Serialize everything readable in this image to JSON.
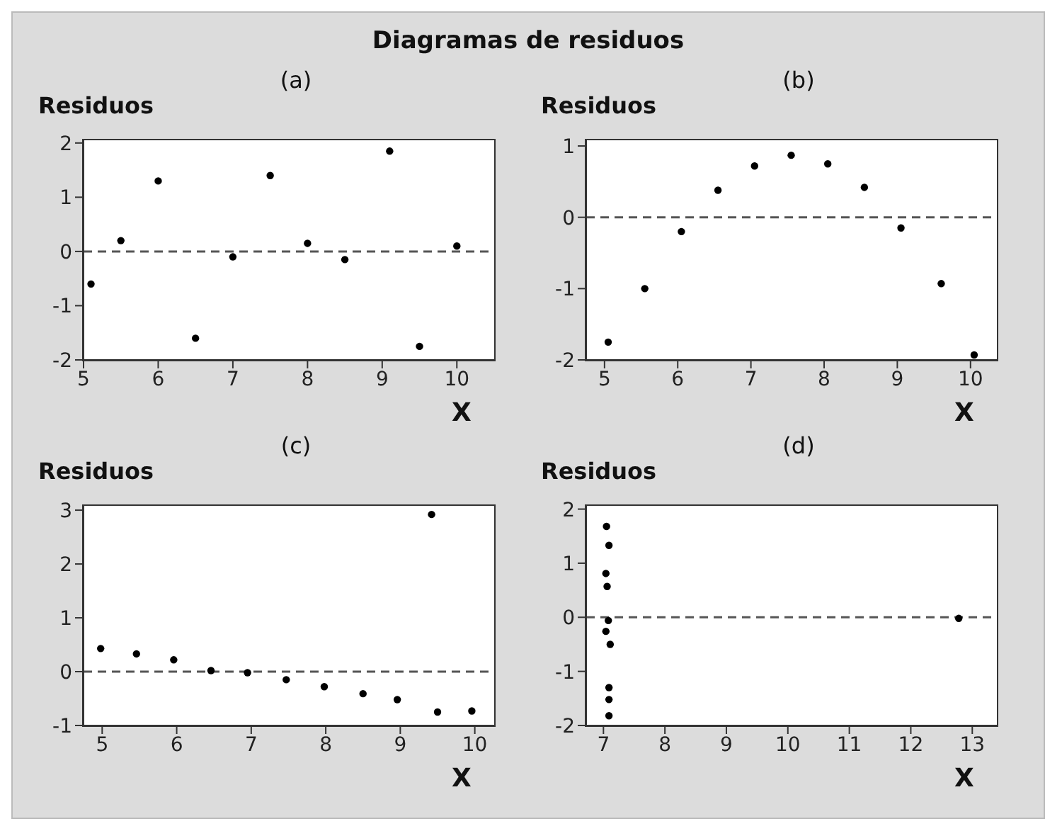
{
  "chart_data": [
    {
      "type": "scatter",
      "title": "Diagramas de residuos",
      "subtitle": "(a)",
      "ylabel": "Residuos",
      "xlabel": "X",
      "marker": "circle",
      "xlim": [
        5,
        10.5
      ],
      "xticks": [
        5,
        6,
        7,
        8,
        9,
        10
      ],
      "ylim": [
        -2,
        2.05
      ],
      "yticks": [
        -2,
        -1,
        0,
        1,
        2
      ],
      "ref_lines": [
        {
          "axis": "y",
          "value": 0,
          "color": "#555555",
          "line_style": "dashed"
        }
      ],
      "series": [
        {
          "color": "#000000",
          "x": [
            5.1,
            5.5,
            6,
            6.5,
            7,
            7.5,
            8,
            8.5,
            9.1,
            9.5,
            10
          ],
          "values": [
            -0.6,
            0.2,
            1.3,
            -1.6,
            -0.1,
            1.4,
            0.15,
            -0.15,
            1.85,
            -1.75,
            0.1
          ]
        }
      ]
    },
    {
      "type": "scatter",
      "subtitle": "(b)",
      "ylabel": "Residuos",
      "xlabel": "X",
      "marker": "circle",
      "xlim": [
        4.75,
        10.36
      ],
      "xticks": [
        5,
        6,
        7,
        8,
        9,
        10
      ],
      "ylim": [
        -2,
        1.08
      ],
      "yticks": [
        -2,
        -1,
        0,
        1
      ],
      "ref_lines": [
        {
          "axis": "y",
          "value": 0,
          "color": "#555555",
          "line_style": "dashed"
        }
      ],
      "series": [
        {
          "color": "#000000",
          "x": [
            5.05,
            5.55,
            6.05,
            6.55,
            7.05,
            7.55,
            8.05,
            8.55,
            9.05,
            9.6,
            10.05
          ],
          "values": [
            -1.75,
            -1.0,
            -0.2,
            0.38,
            0.72,
            0.87,
            0.75,
            0.42,
            -0.15,
            -0.93,
            -1.93
          ]
        }
      ]
    },
    {
      "type": "scatter",
      "subtitle": "(c)",
      "ylabel": "Residuos",
      "xlabel": "X",
      "marker": "circle",
      "xlim": [
        4.75,
        10.26
      ],
      "xticks": [
        5,
        6,
        7,
        8,
        9,
        10
      ],
      "ylim": [
        -1,
        3.08
      ],
      "yticks": [
        -1,
        0,
        1,
        2,
        3
      ],
      "ref_lines": [
        {
          "axis": "y",
          "value": 0,
          "color": "#555555",
          "line_style": "dashed"
        }
      ],
      "series": [
        {
          "color": "#000000",
          "x": [
            4.98,
            5.46,
            5.96,
            6.46,
            6.95,
            7.47,
            7.98,
            8.5,
            8.96,
            9.42,
            9.5,
            9.96
          ],
          "values": [
            0.43,
            0.33,
            0.22,
            0.02,
            -0.02,
            -0.15,
            -0.28,
            -0.41,
            -0.52,
            2.92,
            -0.75,
            -0.73
          ]
        }
      ]
    },
    {
      "type": "scatter",
      "subtitle": "(d)",
      "ylabel": "Residuos",
      "xlabel": "X",
      "marker": "circle",
      "xlim": [
        6.72,
        13.4
      ],
      "xticks": [
        7,
        8,
        9,
        10,
        11,
        12,
        13
      ],
      "ylim": [
        -2,
        2.06
      ],
      "yticks": [
        -2,
        -1,
        0,
        1,
        2
      ],
      "ref_lines": [
        {
          "axis": "y",
          "value": 0,
          "color": "#555555",
          "line_style": "dashed"
        }
      ],
      "series": [
        {
          "color": "#000000",
          "x": [
            7.05,
            7.09,
            7.04,
            7.06,
            7.08,
            7.04,
            7.11,
            7.09,
            7.09,
            7.09,
            12.78
          ],
          "values": [
            1.68,
            1.33,
            0.81,
            0.57,
            -0.06,
            -0.26,
            -0.5,
            -1.3,
            -1.52,
            -1.82,
            -0.02
          ]
        }
      ]
    }
  ]
}
